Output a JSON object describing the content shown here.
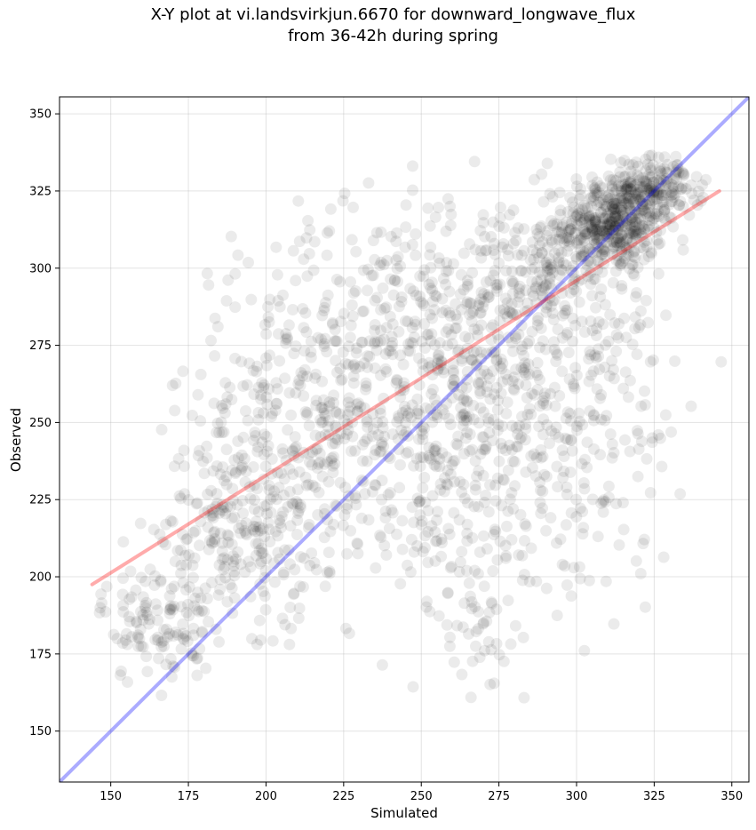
{
  "chart_data": {
    "type": "scatter",
    "title_line1": "X-Y plot at vi.landsvirkjun.6670 for downward_longwave_flux",
    "title_line2": "from 36-42h during spring",
    "xlabel": "Simulated",
    "ylabel": "Observed",
    "xlim": [
      133.5,
      355.5
    ],
    "ylim": [
      133.5,
      355.5
    ],
    "xticks": [
      150,
      175,
      200,
      225,
      250,
      275,
      300,
      325,
      350
    ],
    "yticks": [
      150,
      175,
      200,
      225,
      250,
      275,
      300,
      325,
      350
    ],
    "grid": true,
    "point_color": "#000000",
    "point_opacity": 0.08,
    "identity_line": {
      "x": [
        133.5,
        355.5
      ],
      "y": [
        133.5,
        355.5
      ],
      "color": "#0000ff"
    },
    "fit_line": {
      "x": [
        144,
        346
      ],
      "y": [
        197.5,
        325
      ],
      "color": "#ff0000"
    },
    "clusters": [
      {
        "cx": 312,
        "cy": 315,
        "sx": 8,
        "sy": 8,
        "n": 450
      },
      {
        "cx": 327,
        "cy": 326,
        "sx": 7,
        "sy": 5,
        "n": 150
      },
      {
        "cx": 292,
        "cy": 300,
        "sx": 9,
        "sy": 9,
        "n": 120
      },
      {
        "cx": 270,
        "cy": 285,
        "sx": 22,
        "sy": 20,
        "n": 260
      },
      {
        "cx": 240,
        "cy": 270,
        "sx": 25,
        "sy": 25,
        "n": 320
      },
      {
        "cx": 210,
        "cy": 245,
        "sx": 18,
        "sy": 28,
        "n": 260
      },
      {
        "cx": 190,
        "cy": 215,
        "sx": 12,
        "sy": 15,
        "n": 200
      },
      {
        "cx": 165,
        "cy": 185,
        "sx": 9,
        "sy": 10,
        "n": 120
      },
      {
        "cx": 280,
        "cy": 235,
        "sx": 18,
        "sy": 30,
        "n": 200
      },
      {
        "cx": 305,
        "cy": 255,
        "sx": 15,
        "sy": 25,
        "n": 150
      },
      {
        "cx": 250,
        "cy": 235,
        "sx": 20,
        "sy": 25,
        "n": 150
      },
      {
        "cx": 270,
        "cy": 185,
        "sx": 12,
        "sy": 15,
        "n": 40
      }
    ]
  }
}
